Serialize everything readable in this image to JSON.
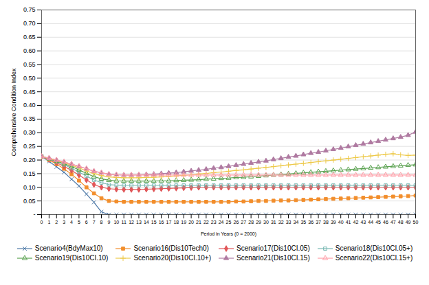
{
  "chart_data": {
    "type": "line",
    "xlabel": "Period in Years (0 = 2000)",
    "ylabel": "Comprehensive Condition Index",
    "xlim": [
      0,
      50
    ],
    "ylim": [
      0,
      0.75
    ],
    "xticks": [
      0,
      1,
      2,
      3,
      4,
      5,
      6,
      7,
      8,
      9,
      10,
      11,
      12,
      13,
      14,
      15,
      16,
      17,
      18,
      19,
      20,
      21,
      22,
      23,
      24,
      25,
      26,
      27,
      28,
      29,
      30,
      31,
      32,
      33,
      34,
      35,
      36,
      37,
      38,
      39,
      40,
      41,
      42,
      43,
      44,
      45,
      46,
      47,
      48,
      49,
      50
    ],
    "yticks": [
      {
        "value": 0.0,
        "label": "-"
      },
      0.05,
      {
        "value": 0.1,
        "label": "0.10"
      },
      0.15,
      {
        "value": 0.2,
        "label": "0.20"
      },
      0.25,
      {
        "value": 0.3,
        "label": "0.30"
      },
      0.35,
      {
        "value": 0.4,
        "label": "0.40"
      },
      0.45,
      {
        "value": 0.5,
        "label": "0.50"
      },
      0.55,
      {
        "value": 0.6,
        "label": "0.60"
      },
      0.65,
      {
        "value": 0.7,
        "label": "0.70"
      },
      0.75
    ],
    "grid": true,
    "legend": "bottom",
    "x": [
      0,
      1,
      2,
      3,
      4,
      5,
      6,
      7,
      8,
      9,
      10,
      11,
      12,
      13,
      14,
      15,
      16,
      17,
      18,
      19,
      20,
      21,
      22,
      23,
      24,
      25,
      26,
      27,
      28,
      29,
      30,
      31,
      32,
      33,
      34,
      35,
      36,
      37,
      38,
      39,
      40,
      41,
      42,
      43,
      44,
      45,
      46,
      47,
      48,
      49,
      50
    ],
    "series": [
      {
        "name": "Scenario4(BdyMax10)",
        "marker": "x",
        "values": [
          0.213,
          0.195,
          0.175,
          0.155,
          0.13,
          0.105,
          0.075,
          0.045,
          0.01,
          0.0,
          0.0,
          0.0,
          0.0,
          0.0,
          0.0,
          0.0,
          0.0,
          0.0,
          0.0,
          0.0,
          0.0,
          0.0,
          0.0,
          0.0,
          0.0,
          0.0,
          0.0,
          0.0,
          0.0,
          0.0,
          0.0,
          0.0,
          0.0,
          0.0,
          0.0,
          0.0,
          0.0,
          0.0,
          0.0,
          0.0,
          0.0,
          0.0,
          0.0,
          0.0,
          0.0,
          0.0,
          0.0,
          0.0,
          0.0,
          0.0,
          0.0
        ]
      },
      {
        "name": "Scenario16(Dis10Tech0)",
        "marker": "square",
        "values": [
          0.213,
          0.2,
          0.185,
          0.168,
          0.148,
          0.125,
          0.1,
          0.078,
          0.06,
          0.05,
          0.048,
          0.047,
          0.047,
          0.047,
          0.047,
          0.047,
          0.047,
          0.047,
          0.047,
          0.047,
          0.047,
          0.047,
          0.047,
          0.047,
          0.047,
          0.047,
          0.048,
          0.048,
          0.049,
          0.05,
          0.05,
          0.051,
          0.052,
          0.052,
          0.053,
          0.054,
          0.055,
          0.056,
          0.057,
          0.058,
          0.059,
          0.06,
          0.061,
          0.062,
          0.063,
          0.064,
          0.065,
          0.066,
          0.067,
          0.068,
          0.07
        ]
      },
      {
        "name": "Scenario17(Dis10CI.05)",
        "marker": "diamond",
        "values": [
          0.213,
          0.202,
          0.19,
          0.177,
          0.162,
          0.145,
          0.127,
          0.11,
          0.1,
          0.095,
          0.093,
          0.092,
          0.092,
          0.092,
          0.093,
          0.094,
          0.095,
          0.096,
          0.097,
          0.098,
          0.099,
          0.1,
          0.1,
          0.1,
          0.1,
          0.1,
          0.1,
          0.1,
          0.1,
          0.1,
          0.1,
          0.1,
          0.1,
          0.1,
          0.1,
          0.1,
          0.1,
          0.1,
          0.1,
          0.1,
          0.1,
          0.1,
          0.1,
          0.1,
          0.1,
          0.1,
          0.1,
          0.1,
          0.1,
          0.1,
          0.1
        ]
      },
      {
        "name": "Scenario18(Dis10CI.05+)",
        "marker": "open square",
        "values": [
          0.213,
          0.204,
          0.194,
          0.183,
          0.17,
          0.156,
          0.141,
          0.127,
          0.117,
          0.11,
          0.108,
          0.107,
          0.107,
          0.107,
          0.107,
          0.107,
          0.107,
          0.107,
          0.107,
          0.107,
          0.107,
          0.107,
          0.107,
          0.107,
          0.107,
          0.107,
          0.107,
          0.107,
          0.107,
          0.107,
          0.107,
          0.107,
          0.107,
          0.107,
          0.107,
          0.107,
          0.107,
          0.107,
          0.107,
          0.107,
          0.107,
          0.107,
          0.107,
          0.107,
          0.107,
          0.107,
          0.107,
          0.107,
          0.107,
          0.107,
          0.107
        ]
      },
      {
        "name": "Scenario19(Dis10CI.10)",
        "marker": "open triangle",
        "values": [
          0.213,
          0.205,
          0.196,
          0.187,
          0.176,
          0.164,
          0.151,
          0.139,
          0.131,
          0.126,
          0.124,
          0.123,
          0.123,
          0.123,
          0.123,
          0.123,
          0.124,
          0.124,
          0.125,
          0.126,
          0.127,
          0.128,
          0.13,
          0.131,
          0.133,
          0.134,
          0.136,
          0.137,
          0.139,
          0.141,
          0.143,
          0.145,
          0.147,
          0.149,
          0.151,
          0.153,
          0.155,
          0.157,
          0.159,
          0.161,
          0.163,
          0.165,
          0.167,
          0.169,
          0.171,
          0.173,
          0.175,
          0.177,
          0.179,
          0.181,
          0.183
        ]
      },
      {
        "name": "Scenario20(Dis10CI.10+)",
        "marker": "plus",
        "values": [
          0.213,
          0.206,
          0.198,
          0.19,
          0.181,
          0.171,
          0.16,
          0.15,
          0.143,
          0.138,
          0.136,
          0.135,
          0.135,
          0.135,
          0.136,
          0.137,
          0.138,
          0.14,
          0.142,
          0.144,
          0.146,
          0.149,
          0.151,
          0.154,
          0.156,
          0.159,
          0.162,
          0.164,
          0.167,
          0.17,
          0.173,
          0.176,
          0.179,
          0.182,
          0.185,
          0.188,
          0.191,
          0.194,
          0.197,
          0.2,
          0.203,
          0.206,
          0.209,
          0.212,
          0.215,
          0.218,
          0.221,
          0.223,
          0.219,
          0.217,
          0.218
        ]
      },
      {
        "name": "Scenario21(Dis10CI.15)",
        "marker": "triangle",
        "values": [
          0.213,
          0.207,
          0.2,
          0.193,
          0.185,
          0.177,
          0.168,
          0.159,
          0.153,
          0.148,
          0.146,
          0.145,
          0.145,
          0.146,
          0.147,
          0.148,
          0.15,
          0.152,
          0.154,
          0.157,
          0.16,
          0.163,
          0.166,
          0.17,
          0.173,
          0.177,
          0.181,
          0.185,
          0.189,
          0.193,
          0.197,
          0.202,
          0.206,
          0.211,
          0.215,
          0.22,
          0.225,
          0.229,
          0.234,
          0.239,
          0.244,
          0.249,
          0.254,
          0.259,
          0.264,
          0.269,
          0.274,
          0.279,
          0.284,
          0.291,
          0.303
        ]
      },
      {
        "name": "Scenario22(Dis10CI.15+)",
        "marker": "open triangle",
        "values": [
          0.213,
          0.207,
          0.2,
          0.193,
          0.185,
          0.177,
          0.168,
          0.159,
          0.153,
          0.148,
          0.146,
          0.145,
          0.145,
          0.145,
          0.145,
          0.145,
          0.145,
          0.145,
          0.145,
          0.145,
          0.145,
          0.145,
          0.145,
          0.145,
          0.145,
          0.145,
          0.145,
          0.145,
          0.145,
          0.145,
          0.145,
          0.145,
          0.145,
          0.145,
          0.145,
          0.145,
          0.145,
          0.145,
          0.145,
          0.145,
          0.145,
          0.145,
          0.145,
          0.145,
          0.145,
          0.145,
          0.145,
          0.145,
          0.145,
          0.145,
          0.145
        ]
      }
    ]
  }
}
